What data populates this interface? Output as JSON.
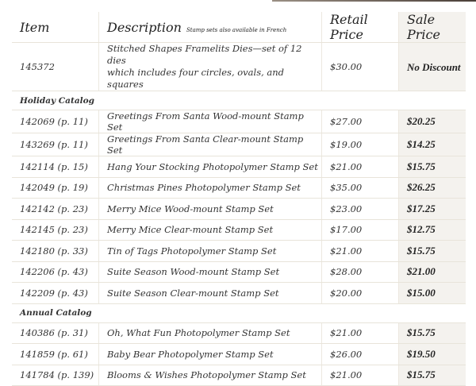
{
  "header": {
    "item": "Item",
    "description": "Description",
    "description_note": "Stamp sets also available in French",
    "retail": "Retail Price",
    "sale": "Sale Price"
  },
  "first_row": {
    "item": "145372",
    "description_line1": "Stitched Shapes Framelits Dies—set of 12 dies",
    "description_line2": "which includes four circles, ovals, and squares",
    "retail": "$30.00",
    "sale": "No Discount"
  },
  "sections": [
    {
      "title": "Holiday Catalog",
      "rows": [
        {
          "item": "142069 (p. 11)",
          "description": "Greetings From Santa Wood-mount Stamp Set",
          "retail": "$27.00",
          "sale": "$20.25"
        },
        {
          "item": "143269 (p. 11)",
          "description": "Greetings From Santa Clear-mount Stamp Set",
          "retail": "$19.00",
          "sale": "$14.25"
        },
        {
          "item": "142114 (p. 15)",
          "description": "Hang Your Stocking Photopolymer Stamp Set",
          "retail": "$21.00",
          "sale": "$15.75"
        },
        {
          "item": "142049 (p. 19)",
          "description": "Christmas Pines Photopolymer Stamp Set",
          "retail": "$35.00",
          "sale": "$26.25"
        },
        {
          "item": "142142 (p. 23)",
          "description": "Merry Mice Wood-mount Stamp Set",
          "retail": "$23.00",
          "sale": "$17.25"
        },
        {
          "item": "142145 (p. 23)",
          "description": "Merry Mice Clear-mount Stamp Set",
          "retail": "$17.00",
          "sale": "$12.75"
        },
        {
          "item": "142180 (p. 33)",
          "description": "Tin of Tags Photopolymer Stamp Set",
          "retail": "$21.00",
          "sale": "$15.75"
        },
        {
          "item": "142206 (p. 43)",
          "description": "Suite Season Wood-mount Stamp Set",
          "retail": "$28.00",
          "sale": "$21.00"
        },
        {
          "item": "142209 (p. 43)",
          "description": "Suite Season Clear-mount Stamp Set",
          "retail": "$20.00",
          "sale": "$15.00"
        }
      ]
    },
    {
      "title": "Annual  Catalog",
      "rows": [
        {
          "item": "140386 (p. 31)",
          "description": "Oh, What Fun Photopolymer Stamp Set",
          "retail": "$21.00",
          "sale": "$15.75"
        },
        {
          "item": "141859 (p. 61)",
          "description": "Baby Bear Photopolymer Stamp Set",
          "retail": "$26.00",
          "sale": "$19.50"
        },
        {
          "item": "141784 (p. 139)",
          "description": "Blooms & Wishes Photopolymer Stamp Set",
          "retail": "$21.00",
          "sale": "$15.75"
        }
      ]
    }
  ]
}
